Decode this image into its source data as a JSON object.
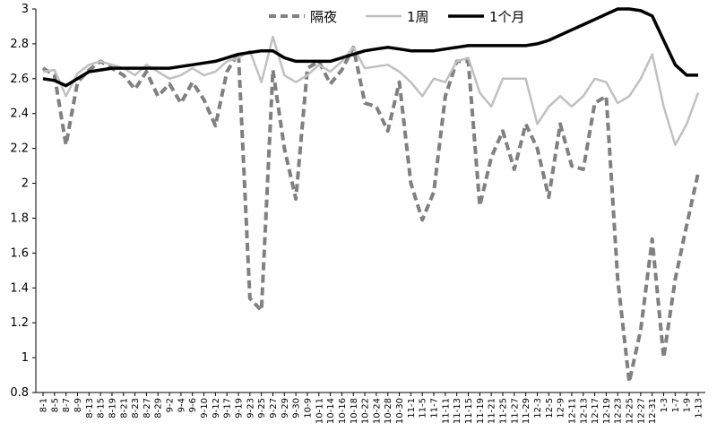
{
  "chart_data": {
    "type": "line",
    "title": "",
    "xlabel": "",
    "ylabel": "",
    "ylim": [
      0.8,
      3.0
    ],
    "yticks": [
      0.8,
      1,
      1.2,
      1.4,
      1.6,
      1.8,
      2,
      2.2,
      2.4,
      2.6,
      2.8,
      3
    ],
    "ytick_labels": [
      "0.8",
      "1",
      "1.2",
      "1.4",
      "1.6",
      "1.8",
      "2",
      "2.2",
      "2.4",
      "2.6",
      "2.8",
      "3"
    ],
    "grid": false,
    "legend_position": "top-right",
    "x": [
      "8-1",
      "8-5",
      "8-7",
      "8-9",
      "8-13",
      "8-15",
      "8-19",
      "8-21",
      "8-23",
      "8-27",
      "8-29",
      "9-2",
      "9-4",
      "9-6",
      "9-10",
      "9-12",
      "9-17",
      "9-19",
      "9-23",
      "9-25",
      "9-27",
      "9-29",
      "9-30",
      "10-9",
      "10-11",
      "10-14",
      "10-16",
      "10-18",
      "10-22",
      "10-24",
      "10-28",
      "10-30",
      "11-1",
      "11-5",
      "11-7",
      "11-11",
      "11-13",
      "11-15",
      "11-19",
      "11-21",
      "11-25",
      "11-27",
      "11-29",
      "12-3",
      "12-5",
      "12-9",
      "12-11",
      "12-13",
      "12-17",
      "12-19",
      "12-23",
      "12-25",
      "12-27",
      "12-31",
      "1-3",
      "1-7",
      "1-9",
      "1-13"
    ],
    "series": [
      {
        "name": "隔夜",
        "color": "#808080",
        "dash": "dashed",
        "values": [
          2.66,
          2.62,
          2.22,
          2.58,
          2.65,
          2.7,
          2.66,
          2.62,
          2.54,
          2.64,
          2.5,
          2.57,
          2.46,
          2.58,
          2.48,
          2.33,
          2.64,
          2.75,
          1.34,
          1.27,
          2.65,
          2.2,
          1.91,
          2.66,
          2.7,
          2.57,
          2.65,
          2.78,
          2.46,
          2.44,
          2.3,
          2.58,
          2.0,
          1.79,
          1.95,
          2.5,
          2.7,
          2.7,
          1.87,
          2.15,
          2.3,
          2.08,
          2.34,
          2.2,
          1.92,
          2.34,
          2.1,
          2.08,
          2.46,
          2.5,
          1.45,
          0.86,
          1.16,
          1.68,
          1.0,
          1.45,
          1.76,
          2.06
        ]
      },
      {
        "name": "1周",
        "color": "#c0c0c0",
        "dash": "solid",
        "values": [
          2.64,
          2.65,
          2.5,
          2.63,
          2.68,
          2.7,
          2.68,
          2.66,
          2.62,
          2.68,
          2.64,
          2.6,
          2.62,
          2.66,
          2.62,
          2.64,
          2.7,
          2.72,
          2.76,
          2.58,
          2.84,
          2.62,
          2.58,
          2.62,
          2.68,
          2.64,
          2.7,
          2.78,
          2.66,
          2.67,
          2.68,
          2.64,
          2.58,
          2.5,
          2.6,
          2.58,
          2.7,
          2.72,
          2.52,
          2.44,
          2.6,
          2.6,
          2.6,
          2.34,
          2.44,
          2.5,
          2.44,
          2.5,
          2.6,
          2.58,
          2.46,
          2.5,
          2.6,
          2.74,
          2.44,
          2.22,
          2.34,
          2.52
        ]
      },
      {
        "name": "1个月",
        "color": "#000000",
        "dash": "solid",
        "values": [
          2.6,
          2.59,
          2.56,
          2.6,
          2.64,
          2.65,
          2.66,
          2.66,
          2.66,
          2.66,
          2.66,
          2.66,
          2.67,
          2.68,
          2.69,
          2.7,
          2.72,
          2.74,
          2.75,
          2.76,
          2.76,
          2.72,
          2.7,
          2.7,
          2.7,
          2.7,
          2.72,
          2.74,
          2.76,
          2.77,
          2.78,
          2.77,
          2.76,
          2.76,
          2.76,
          2.77,
          2.78,
          2.79,
          2.79,
          2.79,
          2.79,
          2.79,
          2.79,
          2.8,
          2.82,
          2.85,
          2.88,
          2.91,
          2.94,
          2.97,
          3.0,
          3.0,
          2.99,
          2.96,
          2.82,
          2.68,
          2.62,
          2.62
        ]
      }
    ]
  }
}
